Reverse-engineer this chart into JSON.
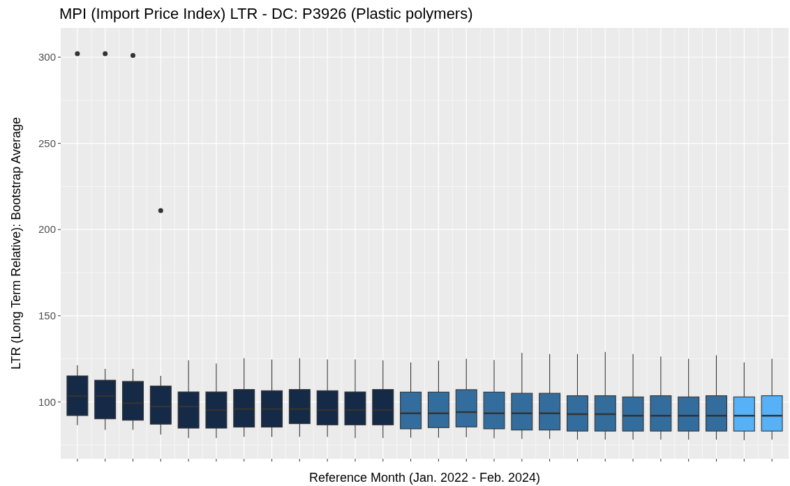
{
  "chart_data": {
    "type": "box",
    "title": "MPI (Import Price Index) LTR - DC: P3926 (Plastic polymers)",
    "xlabel": "Reference Month (Jan. 2022 - Feb. 2024)",
    "ylabel": "LTR (Long Term Relative): Bootstrap Average",
    "categories": [
      null,
      null,
      null,
      null,
      null,
      null,
      null,
      null,
      null,
      null,
      null,
      null,
      null,
      null,
      null,
      null,
      null,
      null,
      null,
      null,
      null,
      null,
      null,
      null,
      null,
      null
    ],
    "colors": [
      "#152a47",
      "#152a47",
      "#152a47",
      "#152a47",
      "#152a47",
      "#152a47",
      "#152a47",
      "#152a47",
      "#152a47",
      "#152a47",
      "#152a47",
      "#152a47",
      "#336d9e",
      "#336d9e",
      "#336d9e",
      "#336d9e",
      "#336d9e",
      "#336d9e",
      "#336d9e",
      "#336d9e",
      "#336d9e",
      "#336d9e",
      "#336d9e",
      "#336d9e",
      "#56b1f7",
      "#56b1f7"
    ],
    "boxes": [
      {
        "low": 86.5,
        "q1": 92.1,
        "median": 103.4,
        "q3": 115.1,
        "high": 121.3,
        "outliers": [
          302
        ]
      },
      {
        "low": 83.8,
        "q1": 90.2,
        "median": 103.4,
        "q3": 112.6,
        "high": 119.2,
        "outliers": [
          302
        ]
      },
      {
        "low": 83.8,
        "q1": 89.4,
        "median": 99.3,
        "q3": 111.9,
        "high": 119.2,
        "outliers": [
          301
        ]
      },
      {
        "low": 81.1,
        "q1": 87.1,
        "median": 97.3,
        "q3": 109.2,
        "high": 115.1,
        "outliers": [
          211
        ]
      },
      {
        "low": 79,
        "q1": 84.8,
        "median": 97.3,
        "q3": 105.8,
        "high": 124.1
      },
      {
        "low": 79,
        "q1": 84.8,
        "median": 95.3,
        "q3": 105.8,
        "high": 122.3
      },
      {
        "low": 79.7,
        "q1": 85.4,
        "median": 95.9,
        "q3": 107.2,
        "high": 125.4
      },
      {
        "low": 79.7,
        "q1": 85.4,
        "median": 95.9,
        "q3": 106.5,
        "high": 124.6
      },
      {
        "low": 79.7,
        "q1": 87.4,
        "median": 95.9,
        "q3": 107.2,
        "high": 125.4
      },
      {
        "low": 79.7,
        "q1": 86.7,
        "median": 95.3,
        "q3": 106.5,
        "high": 124.6
      },
      {
        "low": 79,
        "q1": 86.7,
        "median": 95.3,
        "q3": 105.8,
        "high": 124.6
      },
      {
        "low": 79,
        "q1": 86.7,
        "median": 95.3,
        "q3": 107.2,
        "high": 124.1
      },
      {
        "low": 79.2,
        "q1": 84.4,
        "median": 93.4,
        "q3": 105.7,
        "high": 122.9
      },
      {
        "low": 79.2,
        "q1": 85.1,
        "median": 93.4,
        "q3": 105.7,
        "high": 123.9
      },
      {
        "low": 79.5,
        "q1": 85.5,
        "median": 94.1,
        "q3": 107.1,
        "high": 125
      },
      {
        "low": 78.9,
        "q1": 84.4,
        "median": 93.4,
        "q3": 105.7,
        "high": 124.3
      },
      {
        "low": 78.5,
        "q1": 83.7,
        "median": 93.4,
        "q3": 105,
        "high": 128.5
      },
      {
        "low": 78.5,
        "q1": 83.7,
        "median": 93.4,
        "q3": 105,
        "high": 127.8
      },
      {
        "low": 78.1,
        "q1": 83.1,
        "median": 92.9,
        "q3": 103.6,
        "high": 127.8
      },
      {
        "low": 78.1,
        "q1": 83.1,
        "median": 92.9,
        "q3": 103.6,
        "high": 129
      },
      {
        "low": 78.1,
        "q1": 83.1,
        "median": 92,
        "q3": 102.9,
        "high": 127.8
      },
      {
        "low": 78.1,
        "q1": 83.1,
        "median": 92,
        "q3": 103.6,
        "high": 126.4
      },
      {
        "low": 78.1,
        "q1": 83.1,
        "median": 92,
        "q3": 102.9,
        "high": 125
      },
      {
        "low": 78.1,
        "q1": 83.1,
        "median": 92,
        "q3": 103.6,
        "high": 127.1
      },
      {
        "low": 77.8,
        "q1": 83.1,
        "median": 92,
        "q3": 102.9,
        "high": 122.9
      },
      {
        "low": 78.1,
        "q1": 83.1,
        "median": 92,
        "q3": 103.6,
        "high": 125
      }
    ],
    "ylim": [
      67,
      317
    ],
    "yticks": [
      100,
      150,
      200,
      250,
      300
    ],
    "grid": true,
    "tick_labels": "y"
  }
}
